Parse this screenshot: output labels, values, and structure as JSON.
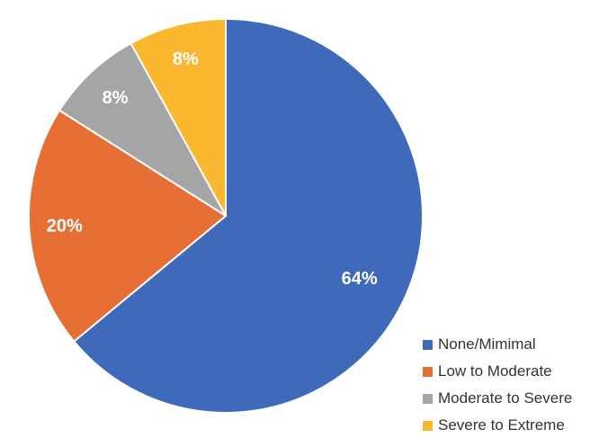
{
  "chart_data": {
    "type": "pie",
    "title": "",
    "start": "top, clockwise",
    "legend_position": "bottom-right",
    "slices": [
      {
        "label": "None/Mimimal",
        "value": 64,
        "display": "64%",
        "color": "#3F69B9"
      },
      {
        "label": "Low to Moderate",
        "value": 20,
        "display": "20%",
        "color": "#E56F35"
      },
      {
        "label": "Moderate to Severe",
        "value": 8,
        "display": "8%",
        "color": "#A5A5A5"
      },
      {
        "label": "Severe to Extreme",
        "value": 8,
        "display": "8%",
        "color": "#F9B82F"
      }
    ]
  }
}
